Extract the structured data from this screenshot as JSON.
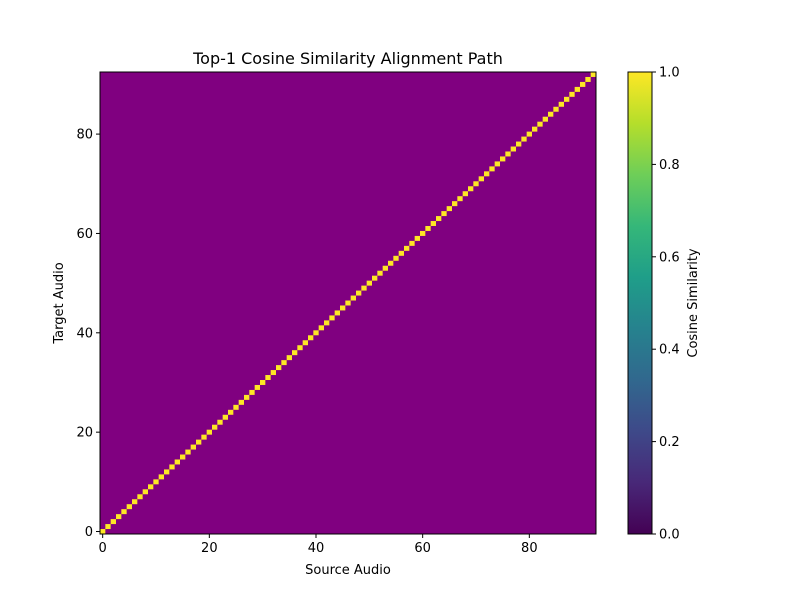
{
  "chart_data": {
    "type": "heatmap",
    "title": "Top-1 Cosine Similarity Alignment Path",
    "xlabel": "Source Audio",
    "ylabel": "Target Audio",
    "n_source": 93,
    "n_target": 93,
    "xlim": [
      -0.5,
      92.5
    ],
    "ylim": [
      -0.5,
      92.5
    ],
    "xticks": [
      0,
      20,
      40,
      60,
      80
    ],
    "yticks": [
      0,
      20,
      40,
      60,
      80
    ],
    "background_value": 0.5,
    "path": {
      "description": "diagonal, target index = source index",
      "value": 1.0,
      "source_indices": [
        0,
        1,
        2,
        3,
        4,
        5,
        6,
        7,
        8,
        9,
        10,
        11,
        12,
        13,
        14,
        15,
        16,
        17,
        18,
        19,
        20,
        21,
        22,
        23,
        24,
        25,
        26,
        27,
        28,
        29,
        30,
        31,
        32,
        33,
        34,
        35,
        36,
        37,
        38,
        39,
        40,
        41,
        42,
        43,
        44,
        45,
        46,
        47,
        48,
        49,
        50,
        51,
        52,
        53,
        54,
        55,
        56,
        57,
        58,
        59,
        60,
        61,
        62,
        63,
        64,
        65,
        66,
        67,
        68,
        69,
        70,
        71,
        72,
        73,
        74,
        75,
        76,
        77,
        78,
        79,
        80,
        81,
        82,
        83,
        84,
        85,
        86,
        87,
        88,
        89,
        90,
        91,
        92
      ],
      "target_indices": [
        0,
        1,
        2,
        3,
        4,
        5,
        6,
        7,
        8,
        9,
        10,
        11,
        12,
        13,
        14,
        15,
        16,
        17,
        18,
        19,
        20,
        21,
        22,
        23,
        24,
        25,
        26,
        27,
        28,
        29,
        30,
        31,
        32,
        33,
        34,
        35,
        36,
        37,
        38,
        39,
        40,
        41,
        42,
        43,
        44,
        45,
        46,
        47,
        48,
        49,
        50,
        51,
        52,
        53,
        54,
        55,
        56,
        57,
        58,
        59,
        60,
        61,
        62,
        63,
        64,
        65,
        66,
        67,
        68,
        69,
        70,
        71,
        72,
        73,
        74,
        75,
        76,
        77,
        78,
        79,
        80,
        81,
        82,
        83,
        84,
        85,
        86,
        87,
        88,
        89,
        90,
        91,
        92
      ]
    },
    "colorbar": {
      "label": "Cosine Similarity",
      "colormap": "viridis",
      "range": [
        0.0,
        1.0
      ],
      "ticks": [
        "0.0",
        "0.2",
        "0.4",
        "0.6",
        "0.8",
        "1.0"
      ]
    },
    "colors": {
      "background_cell": "#800080",
      "path_cell": "#fde725",
      "viridis_stops": [
        "#440154",
        "#482878",
        "#3e4989",
        "#31688e",
        "#26828e",
        "#1f9e89",
        "#35b779",
        "#6ece58",
        "#b5de2b",
        "#fde725"
      ]
    },
    "grid": false,
    "legend": "none"
  }
}
